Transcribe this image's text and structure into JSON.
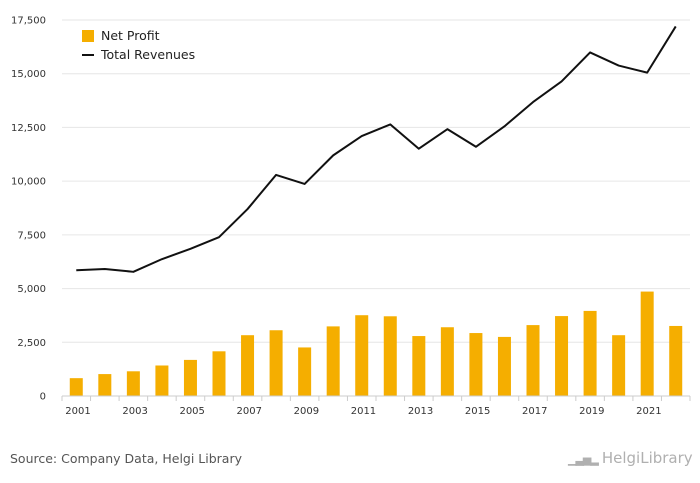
{
  "chart_data": {
    "type": "bar",
    "categories": [
      "2001",
      "2002",
      "2003",
      "2004",
      "2005",
      "2006",
      "2007",
      "2008",
      "2009",
      "2010",
      "2011",
      "2012",
      "2013",
      "2014",
      "2015",
      "2016",
      "2017",
      "2018",
      "2019",
      "2020",
      "2021",
      "2022"
    ],
    "x_tick_labels": [
      "2001",
      "2003",
      "2005",
      "2007",
      "2009",
      "2011",
      "2013",
      "2015",
      "2017",
      "2019",
      "2021"
    ],
    "y_tick_labels": [
      "0",
      "2,500",
      "5,000",
      "7,500",
      "10,000",
      "12,500",
      "15,000",
      "17,500"
    ],
    "y_ticks": [
      0,
      2500,
      5000,
      7500,
      10000,
      12500,
      15000,
      17500
    ],
    "ylim": [
      0,
      17500
    ],
    "series": [
      {
        "name": "Net Profit",
        "type": "bar",
        "color": "#f5ae00",
        "values": [
          830,
          1020,
          1150,
          1420,
          1680,
          2080,
          2830,
          3060,
          2260,
          3240,
          3760,
          3710,
          2790,
          3200,
          2930,
          2750,
          3300,
          3720,
          3960,
          2830,
          4860,
          3260
        ]
      },
      {
        "name": "Total Revenues",
        "type": "line",
        "color": "#111111",
        "values": [
          5850,
          5910,
          5780,
          6370,
          6850,
          7390,
          8700,
          10290,
          9870,
          11200,
          12100,
          12640,
          11510,
          12420,
          11600,
          12550,
          13680,
          14640,
          15990,
          15380,
          15050,
          17200
        ]
      }
    ],
    "legend_position": "top-left",
    "grid": true
  },
  "footer": {
    "source": "Source: Company Data, Helgi Library",
    "logo_mark": "▁▃▅▂",
    "logo_text": "HelgiLibrary"
  }
}
